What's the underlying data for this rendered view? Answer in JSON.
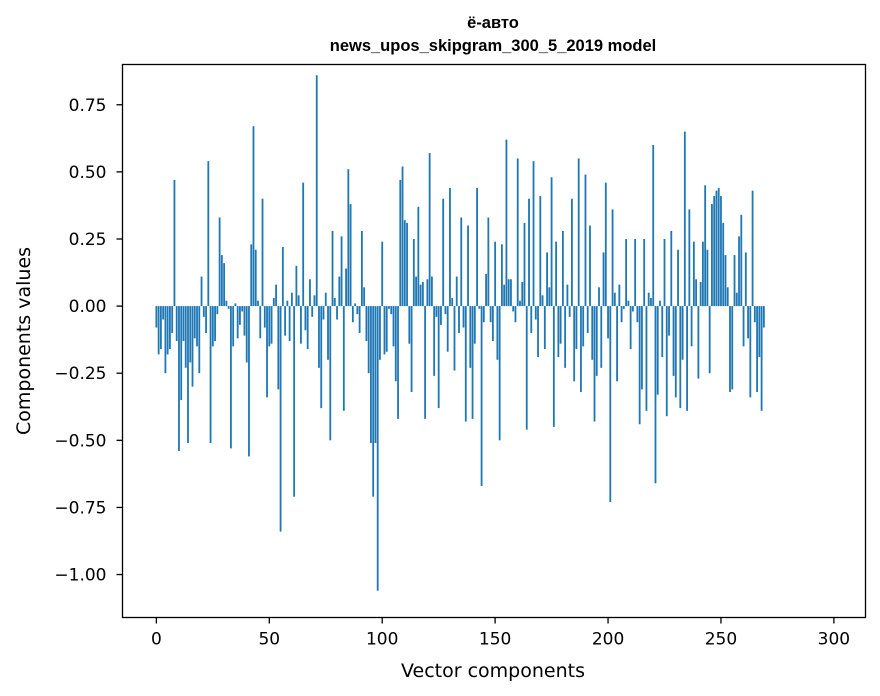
{
  "chart_data": {
    "type": "bar",
    "title": "ё-авто",
    "subtitle": "news_upos_skipgram_300_5_2019 model",
    "xlabel": "Vector components",
    "ylabel": "Components values",
    "xlim": [
      -15,
      314
    ],
    "ylim": [
      -1.16,
      0.9
    ],
    "xticks": [
      0,
      50,
      100,
      150,
      200,
      250,
      300
    ],
    "xtick_labels": [
      "0",
      "50",
      "100",
      "150",
      "200",
      "250",
      "300"
    ],
    "yticks": [
      0.75,
      0.5,
      0.25,
      0.0,
      -0.25,
      -0.5,
      -0.75,
      -1.0
    ],
    "ytick_labels": [
      "0.75",
      "0.50",
      "0.25",
      "0.00",
      "−0.25",
      "−0.50",
      "−0.75",
      "−1.00"
    ],
    "grid": false,
    "bar_color": "#1f77b4",
    "x_start": 0,
    "values": [
      -0.08,
      -0.18,
      -0.16,
      -0.05,
      -0.25,
      -0.18,
      -0.16,
      -0.1,
      0.47,
      -0.13,
      -0.54,
      -0.35,
      -0.13,
      -0.23,
      -0.51,
      -0.21,
      -0.3,
      -0.12,
      -0.15,
      -0.25,
      0.11,
      -0.04,
      -0.1,
      0.54,
      -0.51,
      -0.15,
      -0.13,
      -0.03,
      0.33,
      0.19,
      0.16,
      0.02,
      -0.01,
      -0.53,
      -0.15,
      0.01,
      -0.12,
      -0.07,
      -0.02,
      -0.11,
      -0.21,
      -0.56,
      0.23,
      0.67,
      0.21,
      0.02,
      -0.12,
      0.4,
      -0.08,
      -0.34,
      -0.15,
      -0.14,
      0.03,
      0.08,
      -0.31,
      -0.84,
      0.22,
      -0.11,
      0.02,
      -0.13,
      0.05,
      -0.71,
      0.15,
      0.04,
      -0.14,
      0.46,
      -0.09,
      -0.16,
      0.1,
      -0.04,
      0.04,
      0.86,
      -0.23,
      -0.38,
      -0.05,
      0.05,
      -0.2,
      -0.5,
      0.28,
      0.03,
      -0.05,
      0.11,
      0.26,
      -0.39,
      0.14,
      0.51,
      0.38,
      -0.06,
      0.01,
      -0.03,
      -0.1,
      0.28,
      0.07,
      -0.13,
      -0.25,
      -0.51,
      -0.71,
      -0.51,
      -1.06,
      -0.2,
      0.24,
      -0.18,
      -0.17,
      -0.01,
      -0.03,
      -0.15,
      -0.28,
      -0.42,
      0.47,
      0.52,
      0.32,
      0.31,
      -0.14,
      -0.32,
      0.25,
      0.11,
      0.37,
      0.08,
      0.09,
      -0.42,
      0.1,
      0.57,
      0.11,
      -0.26,
      -0.04,
      -0.38,
      -0.07,
      0.4,
      -0.03,
      -0.17,
      0.44,
      0.03,
      -0.24,
      0.11,
      -0.1,
      0.33,
      -0.08,
      -0.43,
      0.3,
      -0.23,
      -0.42,
      -0.14,
      0.44,
      -0.01,
      -0.67,
      -0.06,
      0.12,
      0.33,
      -0.06,
      -0.13,
      0.24,
      -0.2,
      -0.5,
      0.23,
      0.08,
      0.62,
      0.1,
      0.1,
      -0.02,
      -0.06,
      0.55,
      0.02,
      0.09,
      0.31,
      -0.46,
      0.4,
      -0.1,
      0.54,
      -0.05,
      -0.19,
      0.41,
      0.04,
      -0.16,
      0.2,
      0.07,
      0.48,
      -0.45,
      0.24,
      -0.19,
      -0.14,
      0.28,
      -0.23,
      0.08,
      -0.04,
      0.4,
      -0.28,
      -0.16,
      0.55,
      -0.32,
      -0.15,
      0.49,
      -0.1,
      0.3,
      -0.2,
      -0.43,
      -0.26,
      0.07,
      -0.23,
      0.2,
      0.46,
      -0.12,
      -0.73,
      0.36,
      0.05,
      -0.28,
      0.08,
      -0.06,
      -0.01,
      0.25,
      0.02,
      -0.16,
      -0.02,
      0.25,
      -0.06,
      -0.44,
      -0.31,
      0.25,
      -0.39,
      0.05,
      0.03,
      0.6,
      -0.66,
      -0.33,
      0.02,
      -0.19,
      0.25,
      -0.41,
      -0.11,
      0.28,
      -0.26,
      -0.34,
      0.21,
      -0.38,
      -0.2,
      0.65,
      -0.39,
      0.36,
      -0.15,
      0.24,
      0.1,
      -0.27,
      0.09,
      0.24,
      0.45,
      0.21,
      -0.25,
      0.38,
      0.41,
      0.43,
      0.44,
      0.41,
      0.31,
      0.19,
      0.07,
      -0.32,
      -0.31,
      0.19,
      0.05,
      0.26,
      0.34,
      -0.15,
      0.2,
      -0.12,
      -0.34,
      0.43,
      -0.06,
      -0.32,
      -0.19,
      -0.39,
      -0.08
    ]
  }
}
